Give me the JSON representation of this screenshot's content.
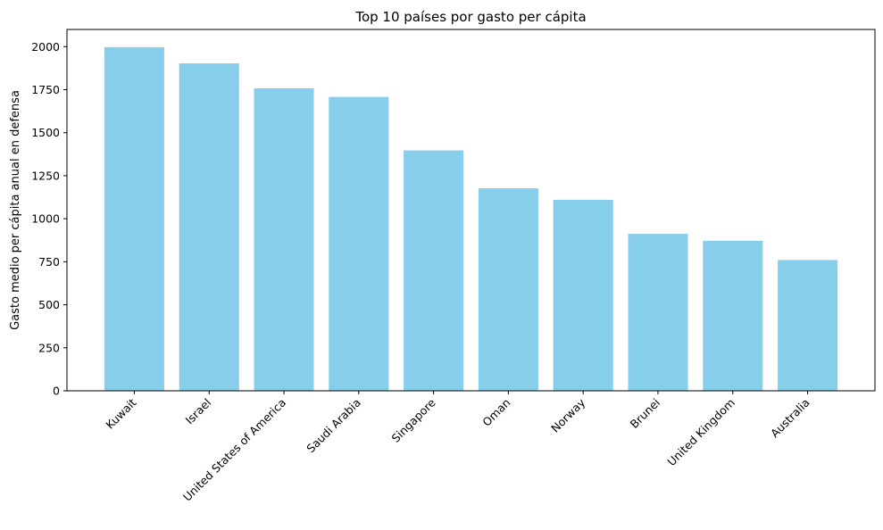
{
  "chart_data": {
    "type": "bar",
    "title": "Top 10 países por gasto per cápita",
    "xlabel": "",
    "ylabel": "Gasto medio per cápita anual en defensa",
    "categories": [
      "Kuwait",
      "Israel",
      "United States of America",
      "Saudi Arabia",
      "Singapore",
      "Oman",
      "Norway",
      "Brunei",
      "United Kingdom",
      "Australia"
    ],
    "values": [
      1997,
      1903,
      1758,
      1708,
      1397,
      1177,
      1110,
      912,
      872,
      760
    ],
    "ylim": [
      0,
      2100
    ],
    "yticks": [
      0,
      250,
      500,
      750,
      1000,
      1250,
      1500,
      1750,
      2000
    ],
    "ytick_labels": [
      "0",
      "250",
      "500",
      "750",
      "1000",
      "1250",
      "1500",
      "1750",
      "2000"
    ],
    "bar_color": "#87ceeb",
    "grid": false,
    "legend": "none"
  }
}
